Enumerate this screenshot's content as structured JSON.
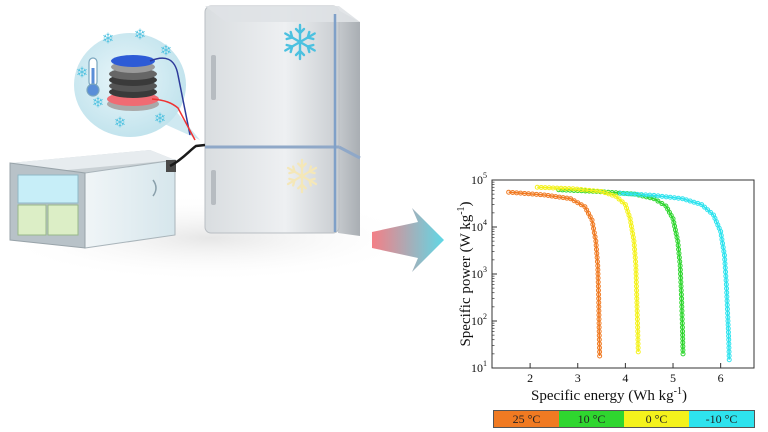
{
  "colors": {
    "series_25C": "#f07a22",
    "series_10C": "#2fd62f",
    "series_0C": "#f4f21c",
    "series_m10C": "#2ee3ee",
    "arrow_start": "#f47f86",
    "arrow_end": "#5fd8e6"
  },
  "icons": {
    "fridge": "refrigerator",
    "battery": "coin-cell-stack",
    "thermometer": "thermometer",
    "snowflake": "snowflake",
    "device": "tester-box"
  },
  "chart_data": {
    "type": "line",
    "xlabel": "Specific energy (Wh kg",
    "xlabel_sup": "-1",
    "xlabel_end": ")",
    "ylabel": "Specific power (W kg",
    "ylabel_sup": "-1",
    "ylabel_end": ")",
    "yscale": "log",
    "xlim": [
      1.2,
      6.7
    ],
    "ylim": [
      10,
      100000
    ],
    "x_ticks": [
      "2",
      "3",
      "4",
      "5",
      "6"
    ],
    "y_ticks": [
      "10",
      "10",
      "10",
      "10",
      "10"
    ],
    "y_tick_exponents": [
      "1",
      "2",
      "3",
      "4",
      "5"
    ],
    "legend": [
      "25 °C",
      "10 °C",
      "0 °C",
      "-10 °C"
    ],
    "series": [
      {
        "name": "25 °C",
        "points": [
          [
            1.55,
            55000
          ],
          [
            2.3,
            48000
          ],
          [
            2.85,
            40000
          ],
          [
            3.15,
            27000
          ],
          [
            3.3,
            14000
          ],
          [
            3.38,
            5000
          ],
          [
            3.42,
            1500
          ],
          [
            3.44,
            300
          ],
          [
            3.45,
            60
          ],
          [
            3.46,
            18
          ]
        ]
      },
      {
        "name": "10 °C",
        "points": [
          [
            2.6,
            62000
          ],
          [
            3.4,
            57000
          ],
          [
            4.2,
            50000
          ],
          [
            4.6,
            40000
          ],
          [
            4.85,
            28000
          ],
          [
            5.0,
            15000
          ],
          [
            5.1,
            5000
          ],
          [
            5.15,
            1500
          ],
          [
            5.18,
            300
          ],
          [
            5.2,
            60
          ],
          [
            5.21,
            20
          ]
        ]
      },
      {
        "name": "0 °C",
        "points": [
          [
            2.15,
            70000
          ],
          [
            2.9,
            65000
          ],
          [
            3.5,
            57000
          ],
          [
            3.8,
            45000
          ],
          [
            4.0,
            30000
          ],
          [
            4.1,
            15000
          ],
          [
            4.18,
            5000
          ],
          [
            4.22,
            1500
          ],
          [
            4.24,
            300
          ],
          [
            4.26,
            60
          ],
          [
            4.27,
            22
          ]
        ]
      },
      {
        "name": "-10 °C",
        "points": [
          [
            3.9,
            52000
          ],
          [
            4.6,
            47000
          ],
          [
            5.2,
            40000
          ],
          [
            5.6,
            30000
          ],
          [
            5.85,
            18000
          ],
          [
            6.0,
            8000
          ],
          [
            6.08,
            2500
          ],
          [
            6.12,
            600
          ],
          [
            6.15,
            120
          ],
          [
            6.17,
            40
          ],
          [
            6.18,
            15
          ]
        ]
      }
    ]
  }
}
